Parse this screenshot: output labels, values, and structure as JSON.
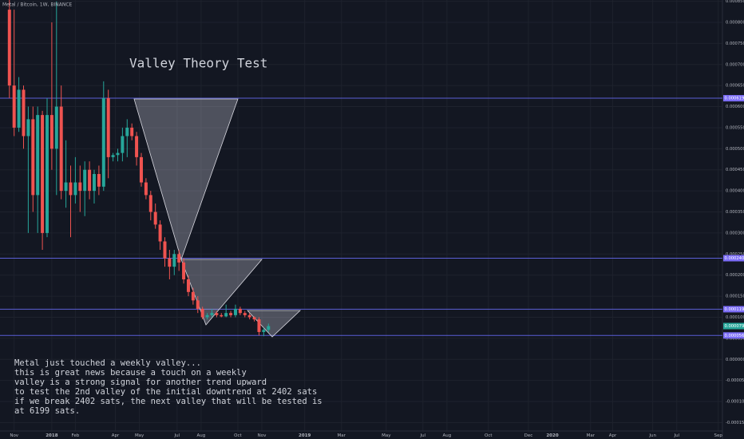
{
  "chart_data": {
    "type": "candlestick",
    "symbol": "Metal / Bitcoin, 1W, BINANCE",
    "title": "Valley Theory Test",
    "annotation": [
      "Metal just touched a weekly valley...",
      "this is great news because a touch on a weekly",
      "valley is a strong signal for another trend upward",
      "to test the 2nd valley of the initial downtrend at 2402 sats",
      "if we break 2402 sats, the next valley that will be tested is",
      "at 6199 sats."
    ],
    "up_color": "#26a69a",
    "down_color": "#ef5350",
    "level_color": "#5b5fd6",
    "grid": true,
    "x": [
      0,
      1,
      2,
      3,
      4,
      5,
      6,
      7,
      8,
      9,
      10,
      11,
      12,
      13,
      14,
      15,
      16,
      17,
      18,
      19,
      20,
      21,
      22,
      23,
      24,
      25,
      26,
      27,
      28,
      29,
      30,
      31,
      32,
      33,
      34,
      35,
      36,
      37,
      38,
      39,
      40,
      41,
      42,
      43,
      44,
      45,
      46,
      47,
      48,
      49,
      50,
      51,
      52,
      53,
      54,
      55
    ],
    "open": [
      0.00083,
      0.00065,
      0.00055,
      0.00064,
      0.00053,
      0.00057,
      0.00039,
      0.00058,
      0.0003,
      0.00058,
      0.0005,
      0.0006,
      0.0004,
      0.00042,
      0.00039,
      0.00042,
      0.0004,
      0.00045,
      0.0004,
      0.00044,
      0.00041,
      0.00062,
      0.00048,
      0.000485,
      0.00049,
      0.00053,
      0.00055,
      0.00053,
      0.00048,
      0.00042,
      0.00039,
      0.00035,
      0.00032,
      0.00028,
      0.00024,
      0.00022,
      0.00025,
      0.00023,
      0.00019,
      0.00016,
      0.00014,
      0.00012,
      0.0001,
      0.000105,
      0.00011,
      0.000105,
      0.000102,
      0.00011,
      0.000105,
      0.00012,
      0.00011,
      0.000105,
      0.0001,
      9.5e-05,
      6.5e-05,
      7e-05
    ],
    "high": [
      0.00086,
      0.00083,
      0.00067,
      0.00065,
      0.0006,
      0.0006,
      0.0006,
      0.00059,
      0.00062,
      0.0008,
      0.00085,
      0.00065,
      0.00052,
      0.00046,
      0.00048,
      0.00046,
      0.00047,
      0.00047,
      0.00045,
      0.00046,
      0.00066,
      0.00064,
      0.00049,
      0.0005,
      0.00055,
      0.00057,
      0.00056,
      0.00054,
      0.00049,
      0.00043,
      0.0004,
      0.00037,
      0.00033,
      0.00029,
      0.00026,
      0.00026,
      0.00026,
      0.00024,
      0.0002,
      0.00017,
      0.00015,
      0.000125,
      0.00011,
      0.00012,
      0.000115,
      0.00011,
      0.00013,
      0.000115,
      0.00013,
      0.000125,
      0.000115,
      0.00011,
      0.000102,
      0.0001,
      7.5e-05,
      8.5e-05
    ],
    "low": [
      0.00062,
      0.00053,
      0.00054,
      0.0005,
      0.0003,
      0.00035,
      0.0003,
      0.00026,
      0.00029,
      0.00045,
      0.00039,
      0.00038,
      0.00036,
      0.00029,
      0.00037,
      0.00035,
      0.00034,
      0.00038,
      0.00037,
      0.00039,
      0.0004,
      0.00043,
      0.00047,
      0.00047,
      0.00047,
      0.00048,
      0.00052,
      0.00046,
      0.00041,
      0.00038,
      0.00033,
      0.00031,
      0.00026,
      0.00022,
      0.00019,
      0.0002,
      0.00021,
      0.00018,
      0.00015,
      0.00013,
      0.00011,
      9.5e-05,
      9.5e-05,
      0.0001,
      0.0001,
      0.0001,
      0.0001,
      0.0001,
      0.0001,
      0.000105,
      0.0001,
      9.5e-05,
      9e-05,
      5.68e-05,
      5.5e-05,
      6.5e-05
    ],
    "close": [
      0.00065,
      0.00055,
      0.00064,
      0.00053,
      0.00057,
      0.00039,
      0.00058,
      0.0003,
      0.00058,
      0.0005,
      0.0006,
      0.0004,
      0.00042,
      0.00039,
      0.00042,
      0.0004,
      0.00045,
      0.0004,
      0.00044,
      0.00041,
      0.00062,
      0.00048,
      0.000485,
      0.00049,
      0.00053,
      0.00055,
      0.00053,
      0.00048,
      0.00042,
      0.00039,
      0.00035,
      0.00032,
      0.00028,
      0.00024,
      0.00022,
      0.00025,
      0.00023,
      0.00019,
      0.00016,
      0.00014,
      0.00012,
      0.0001,
      0.000105,
      0.00011,
      0.000105,
      0.000102,
      0.00011,
      0.000105,
      0.00012,
      0.00011,
      0.000105,
      0.0001,
      9.5e-05,
      6.5e-05,
      7e-05,
      7.91e-05
    ],
    "levels": [
      {
        "value": 0.0006199,
        "label": "0.0006199"
      },
      {
        "value": 0.0002402,
        "label": "0.0002402"
      },
      {
        "value": 0.0001191,
        "label": "0.0001191"
      },
      {
        "value": 5.68e-05,
        "label": "0.0000568"
      }
    ],
    "last_price": {
      "value": 7.91e-05,
      "label": "0.0000791"
    },
    "xlim": [
      -2,
      151.4
    ],
    "ylim": [
      -0.00017,
      0.000853
    ],
    "xticks": [
      {
        "value": 1,
        "label": "Nov"
      },
      {
        "value": 9,
        "label": "2018"
      },
      {
        "value": 14,
        "label": "Feb"
      },
      {
        "value": 22.5,
        "label": "Apr"
      },
      {
        "value": 27.6,
        "label": "May"
      },
      {
        "value": 35.6,
        "label": "Jul"
      },
      {
        "value": 40.7,
        "label": "Aug"
      },
      {
        "value": 48.5,
        "label": "Oct"
      },
      {
        "value": 53.6,
        "label": "Nov"
      },
      {
        "value": 62.7,
        "label": "2019"
      },
      {
        "value": 70.5,
        "label": "Mar"
      },
      {
        "value": 80,
        "label": "May"
      },
      {
        "value": 87.8,
        "label": "Jul"
      },
      {
        "value": 92.9,
        "label": "Aug"
      },
      {
        "value": 101.7,
        "label": "Oct"
      },
      {
        "value": 110.2,
        "label": "Dec"
      },
      {
        "value": 115.3,
        "label": "2020"
      },
      {
        "value": 123.4,
        "label": "Mar"
      },
      {
        "value": 128.1,
        "label": "Apr"
      },
      {
        "value": 136.6,
        "label": "Jun"
      },
      {
        "value": 141.7,
        "label": "Jul"
      },
      {
        "value": 150.5,
        "label": "Sep"
      }
    ],
    "yticks": [
      {
        "value": 0.00085,
        "label": "0.0008500"
      },
      {
        "value": 0.0008,
        "label": "0.0008000"
      },
      {
        "value": 0.00075,
        "label": "0.0007500"
      },
      {
        "value": 0.0007,
        "label": "0.0007000"
      },
      {
        "value": 0.00065,
        "label": "0.0006500"
      },
      {
        "value": 0.0006,
        "label": "0.0006000"
      },
      {
        "value": 0.00055,
        "label": "0.0005500"
      },
      {
        "value": 0.0005,
        "label": "0.0005000"
      },
      {
        "value": 0.00045,
        "label": "0.0004500"
      },
      {
        "value": 0.0004,
        "label": "0.0004000"
      },
      {
        "value": 0.00035,
        "label": "0.0003500"
      },
      {
        "value": 0.0003,
        "label": "0.0003000"
      },
      {
        "value": 0.00025,
        "label": "0.0002500"
      },
      {
        "value": 0.0002,
        "label": "0.0002000"
      },
      {
        "value": 0.00015,
        "label": "0.0001500"
      },
      {
        "value": 0.0001,
        "label": "0.0001000"
      },
      {
        "value": 5e-05,
        "label": "0.0000500"
      },
      {
        "value": 0,
        "label": "0.0000000"
      },
      {
        "value": -5e-05,
        "label": "-0.0000500"
      },
      {
        "value": -0.0001,
        "label": "-0.0001000"
      },
      {
        "value": -0.00015,
        "label": "-0.0001500"
      }
    ]
  }
}
